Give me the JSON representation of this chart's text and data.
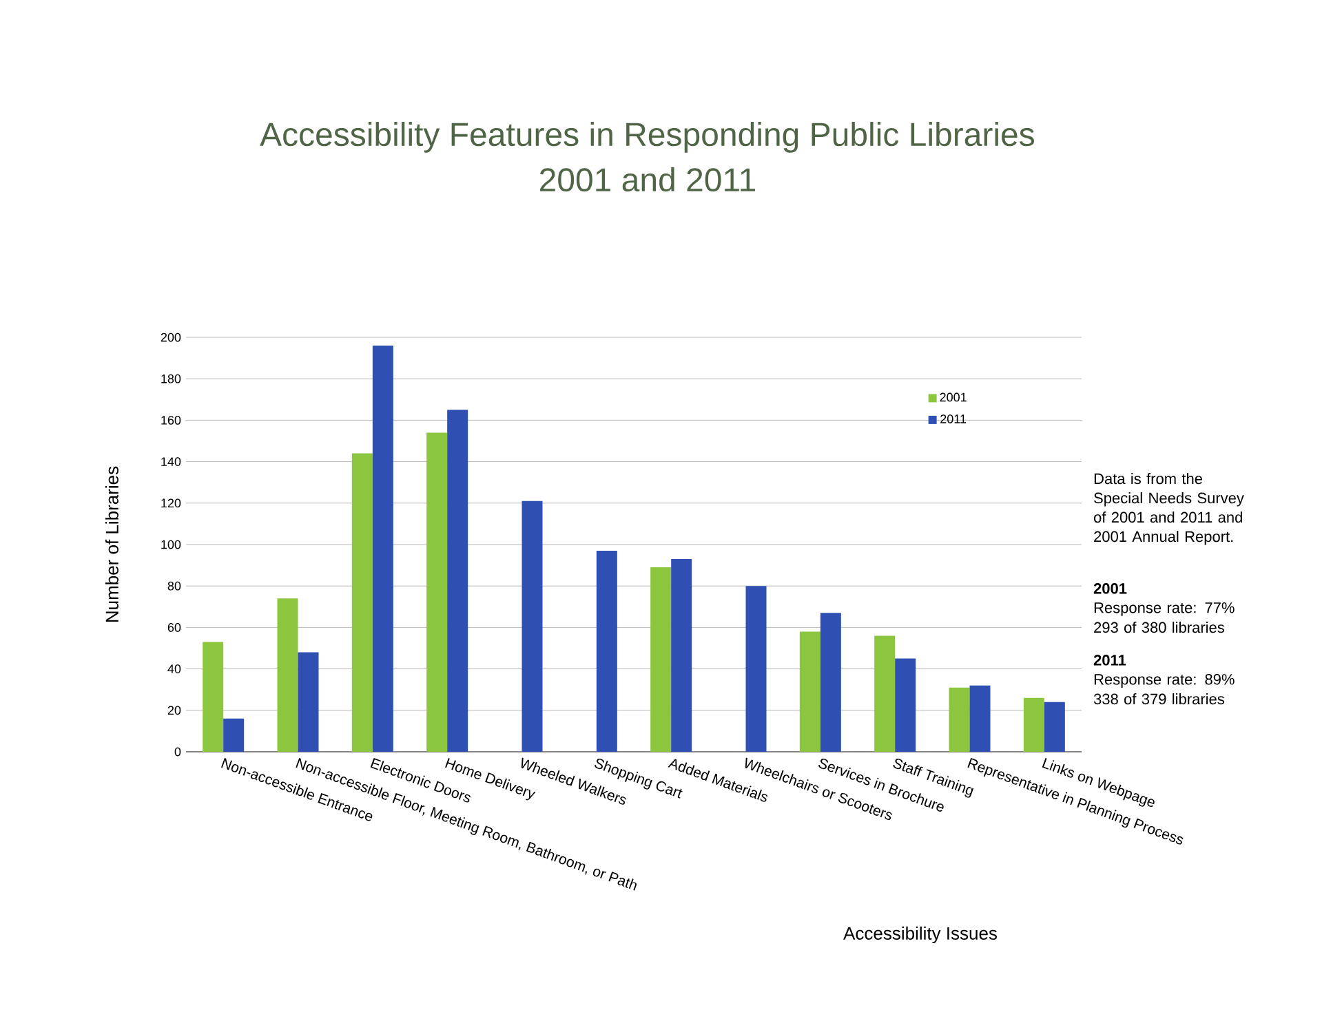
{
  "chart_data": {
    "type": "bar",
    "title": "Accessibility Features in Responding Public Libraries",
    "subtitle": "2001 and 2011",
    "xlabel": "Accessibility Issues",
    "ylabel": "Number of Libraries",
    "categories": [
      "Non-accessible Entrance",
      "Non-accessible Floor, Meeting Room, Bathroom, or Path",
      "Electronic Doors",
      "Home Delivery",
      "Wheeled Walkers",
      "Shopping Cart",
      "Added Materials",
      "Wheelchairs or Scooters",
      "Services in Brochure",
      "Staff Training",
      "Representative in Planning Process",
      "Links on Webpage"
    ],
    "series": [
      {
        "name": "2001",
        "color": "#8cc63f",
        "values": [
          53,
          74,
          144,
          154,
          null,
          null,
          89,
          null,
          58,
          56,
          31,
          26
        ]
      },
      {
        "name": "2011",
        "color": "#2f4fb3",
        "values": [
          16,
          48,
          196,
          165,
          121,
          97,
          93,
          80,
          67,
          45,
          32,
          24
        ]
      }
    ],
    "ylim": [
      0,
      200
    ],
    "yticks": [
      0,
      20,
      40,
      60,
      80,
      100,
      120,
      140,
      160,
      180,
      200
    ],
    "grid": "y",
    "legend": "top right",
    "annotations": [
      "Data is from the Special Needs Survey of 2001 and 2011 and 2001 Annual Report.",
      "2001",
      "Response rate: 77%",
      "293 of 380 libraries",
      "2011",
      "Response rate: 89%",
      "338 of 379 libraries"
    ]
  }
}
